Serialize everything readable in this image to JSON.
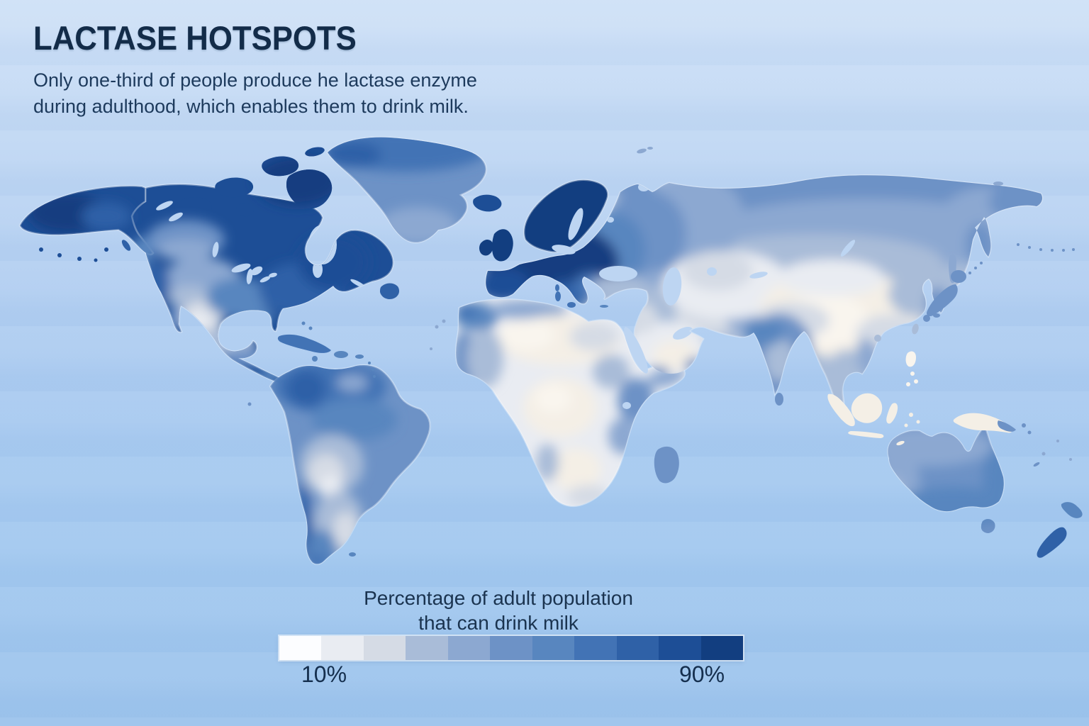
{
  "header": {
    "title": "LACTASE HOTSPOTS",
    "subtitle1": "Only one-third of people produce he lactase enzyme",
    "subtitle2": "during adulthood, which enables them to drink milk."
  },
  "legend": {
    "title1": "Percentage of adult population",
    "title2": "that can drink milk",
    "min_label": "10%",
    "max_label": "90%",
    "colors": [
      "#fcfdff",
      "#e9ecf2",
      "#d5dbe5",
      "#a9bcd8",
      "#8ca8d1",
      "#6d92c6",
      "#5886bf",
      "#4273b5",
      "#2f61a7",
      "#1d4e96",
      "#123e80"
    ]
  },
  "colors": {
    "background_top": "#cfe1f7",
    "background_bottom": "#9cc3ec",
    "ocean_inland": "#bdd5f2",
    "cream_low": "#f4efe6",
    "cream_lowest": "#f9f5ee",
    "text": "#142e4c"
  },
  "map_regions": [
    {
      "name": "scandinavia-uk-central-europe",
      "color": "#123e80"
    },
    {
      "name": "canada-alaska",
      "color": "#1d4e96"
    },
    {
      "name": "eastern-us",
      "color": "#2f61a7"
    },
    {
      "name": "western-us-plains",
      "color": "#8ca8d1"
    },
    {
      "name": "greenland",
      "color": "#6d92c6"
    },
    {
      "name": "mexico",
      "color": "#d5dbe5"
    },
    {
      "name": "central-america",
      "color": "#6d92c6"
    },
    {
      "name": "northern-south-america",
      "color": "#4273b5"
    },
    {
      "name": "brazil",
      "color": "#6d92c6"
    },
    {
      "name": "central-south-america",
      "color": "#a9bcd8"
    },
    {
      "name": "chile-coast",
      "color": "#2f61a7"
    },
    {
      "name": "argentina",
      "color": "#a9bcd8"
    },
    {
      "name": "eastern-europe",
      "color": "#5886bf"
    },
    {
      "name": "western-russia",
      "color": "#8ca8d1"
    },
    {
      "name": "siberia",
      "color": "#8ca8d1"
    },
    {
      "name": "central-asia",
      "color": "#e9ecf2"
    },
    {
      "name": "china",
      "color": "#f4efe6"
    },
    {
      "name": "india",
      "color": "#6d92c6"
    },
    {
      "name": "japan-korea",
      "color": "#6d92c6"
    },
    {
      "name": "middle-east-arabia",
      "color": "#e9ecf2"
    },
    {
      "name": "north-africa-sahara",
      "color": "#f4efe6"
    },
    {
      "name": "northwest-africa-coast",
      "color": "#5886bf"
    },
    {
      "name": "east-africa",
      "color": "#6d92c6"
    },
    {
      "name": "central-southern-africa",
      "color": "#e9ecf2"
    },
    {
      "name": "madagascar",
      "color": "#6d92c6"
    },
    {
      "name": "southeast-asia",
      "color": "#d5dbe5"
    },
    {
      "name": "indonesia-philippines-new-guinea",
      "color": "#f4efe6"
    },
    {
      "name": "australia",
      "color": "#6d92c6"
    },
    {
      "name": "new-zealand",
      "color": "#4273b5"
    }
  ]
}
